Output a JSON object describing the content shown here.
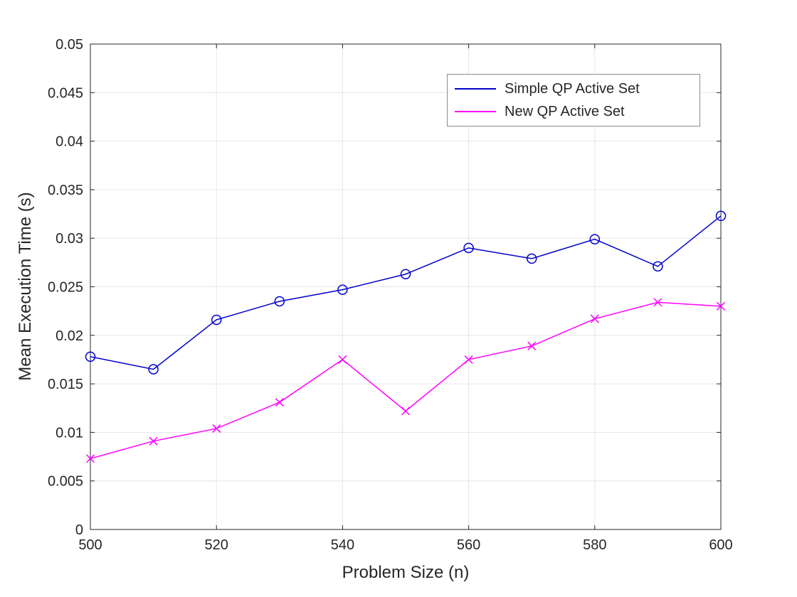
{
  "chart_data": {
    "type": "line",
    "title": "",
    "xlabel": "Problem Size (n)",
    "ylabel": "Mean Execution Time (s)",
    "xlim": [
      500,
      600
    ],
    "ylim": [
      0,
      0.05
    ],
    "xticks": [
      500,
      520,
      540,
      560,
      580,
      600
    ],
    "yticks": [
      0,
      0.005,
      0.01,
      0.015,
      0.02,
      0.025,
      0.03,
      0.035,
      0.04,
      0.045,
      0.05
    ],
    "grid": true,
    "legend_position": "upper-right-inside",
    "axis_color": "#262626",
    "grid_color": "#e6e6e6",
    "x": [
      500,
      510,
      520,
      530,
      540,
      550,
      560,
      570,
      580,
      590,
      600
    ],
    "series": [
      {
        "name": "Simple QP Active Set",
        "color": "#0000cc",
        "marker": "circle",
        "values": [
          0.0178,
          0.0165,
          0.0216,
          0.0235,
          0.0247,
          0.0263,
          0.029,
          0.0279,
          0.0299,
          0.0271,
          0.0323
        ]
      },
      {
        "name": "New QP Active Set",
        "color": "#ff00ff",
        "marker": "x",
        "values": [
          0.0073,
          0.0091,
          0.0104,
          0.0131,
          0.0175,
          0.0122,
          0.0175,
          0.0189,
          0.0217,
          0.0234,
          0.023
        ]
      }
    ]
  }
}
